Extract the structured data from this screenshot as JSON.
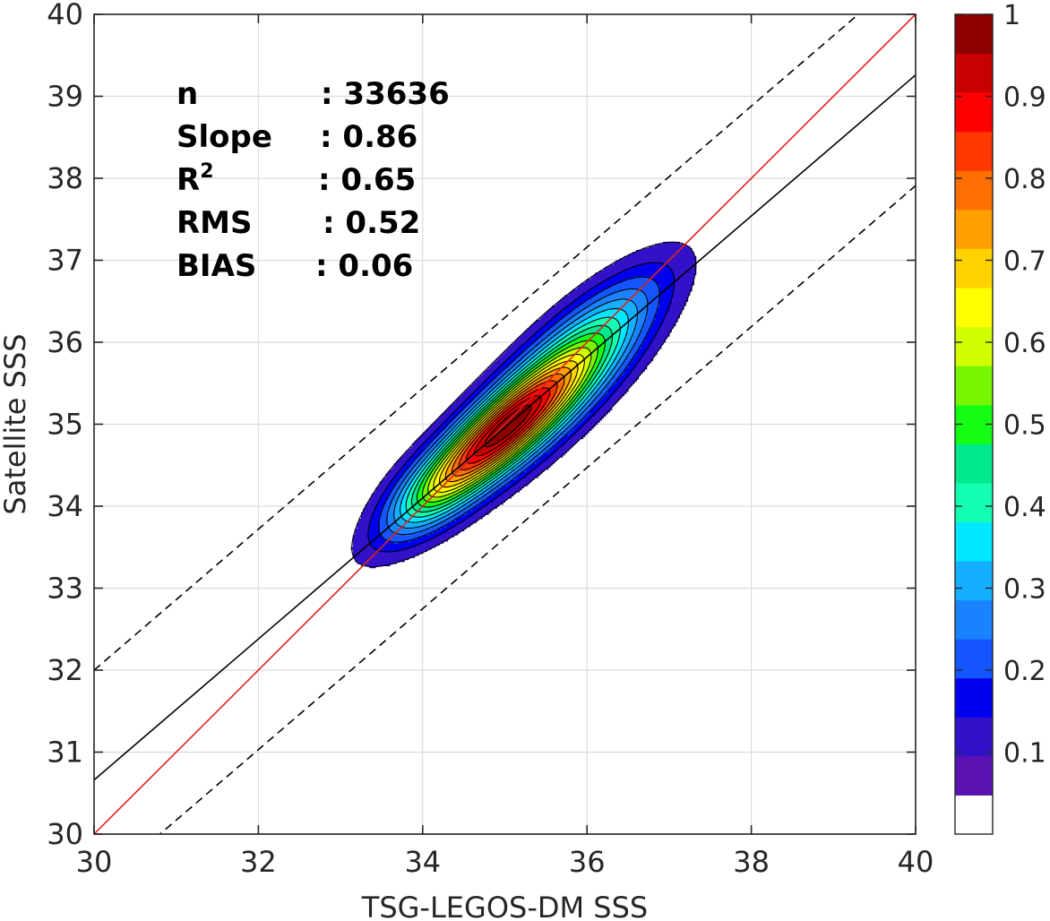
{
  "chart_data": {
    "type": "contour-density",
    "xlabel": "TSG-LEGOS-DM SSS",
    "ylabel": "Satellite SSS",
    "xlim": [
      30,
      40
    ],
    "ylim": [
      30,
      40
    ],
    "xticks": [
      "30",
      "32",
      "34",
      "36",
      "38",
      "40"
    ],
    "yticks": [
      "30",
      "31",
      "32",
      "33",
      "34",
      "35",
      "36",
      "37",
      "38",
      "39",
      "40"
    ],
    "grid": true,
    "stats": [
      {
        "label": "n",
        "value": ": 33636"
      },
      {
        "label": "Slope",
        "value": ": 0.86"
      },
      {
        "label": "R",
        "superscript": "2",
        "value": ": 0.65"
      },
      {
        "label": "RMS",
        "value": ": 0.52"
      },
      {
        "label": "BIAS",
        "value": ": 0.06"
      }
    ],
    "lines": [
      {
        "role": "one-to-one",
        "color": "#e02020",
        "dash": false,
        "slope": 1.0,
        "intercept": 0.0
      },
      {
        "role": "regression",
        "color": "#000000",
        "dash": false,
        "slope": 0.86,
        "intercept": 4.86
      },
      {
        "role": "upper-envelope",
        "color": "#000000",
        "dash": true,
        "slope": 0.86,
        "intercept": 6.2
      },
      {
        "role": "lower-envelope",
        "color": "#000000",
        "dash": true,
        "slope": 0.86,
        "intercept": 3.51
      }
    ],
    "density": {
      "blobs": [
        {
          "center": [
            34.72,
            34.72
          ],
          "major_sd": 0.9,
          "minor_sd": 0.24,
          "angle_deg": 42,
          "weight": 0.97
        },
        {
          "center": [
            35.4,
            35.25
          ],
          "major_sd": 1.02,
          "minor_sd": 0.3,
          "angle_deg": 42,
          "weight": 1.0
        },
        {
          "center": [
            36.1,
            36.25
          ],
          "major_sd": 0.85,
          "minor_sd": 0.28,
          "angle_deg": 40,
          "weight": 0.27
        },
        {
          "center": [
            34.05,
            34.15
          ],
          "major_sd": 0.45,
          "minor_sd": 0.28,
          "angle_deg": 42,
          "weight": 0.14
        }
      ],
      "levels": [
        0.05,
        0.1,
        0.15,
        0.2,
        0.25,
        0.3,
        0.35,
        0.4,
        0.45,
        0.5,
        0.55,
        0.6,
        0.65,
        0.7,
        0.75,
        0.8,
        0.85,
        0.9,
        0.95
      ]
    },
    "colorbar": {
      "ticks": [
        "0.1",
        "0.2",
        "0.3",
        "0.4",
        "0.5",
        "0.6",
        "0.7",
        "0.8",
        "0.9",
        "1"
      ],
      "tick_values": [
        0.1,
        0.2,
        0.3,
        0.4,
        0.5,
        0.6,
        0.7,
        0.8,
        0.9,
        1.0
      ],
      "range": [
        0,
        1
      ],
      "colors": [
        "#ffffff",
        "#5a13b0",
        "#3211c8",
        "#0000ee",
        "#1455ff",
        "#1a82ff",
        "#14b0ff",
        "#00e8ff",
        "#14ffb4",
        "#00e88c",
        "#14ff14",
        "#78f500",
        "#d2ff00",
        "#ffff00",
        "#ffd200",
        "#ffa000",
        "#ff6e00",
        "#ff3700",
        "#ff0000",
        "#c80000",
        "#8c0000"
      ]
    }
  }
}
